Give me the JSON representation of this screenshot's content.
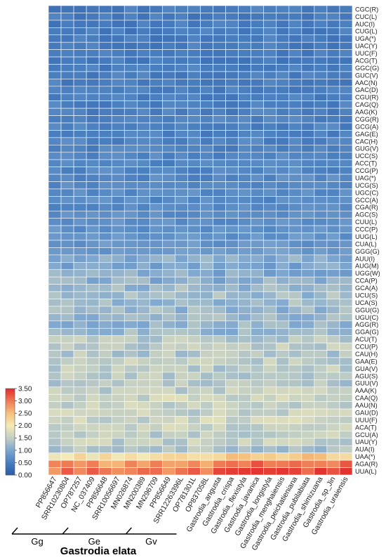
{
  "chart_data": {
    "type": "heatmap",
    "title": "",
    "xlabel": "",
    "ylabel": "",
    "columns": [
      "PP856647",
      "SRR10230804",
      "OP787257",
      "NC_037409",
      "PP856648",
      "SRR10056697",
      "MN026874",
      "MN200389",
      "MN296709",
      "PP856649",
      "SRR12263396L",
      "OP781301L",
      "OP837058L",
      "Gastrodia_angusta",
      "Gastrodia_crispa",
      "Gastrodia_flexistyla",
      "Gastrodia_javanica",
      "Gastrodia_longistyla",
      "Gastrodia_menghaiensis",
      "Gastrodia_peichatieniana",
      "Gastrodia_pubilabiata",
      "Gastrodia_shimizuana",
      "Gastrodia_sp_Jin",
      "Gastrodia_uraiensis"
    ],
    "rows": [
      "CGC(R)",
      "CUC(L)",
      "AUC(I)",
      "CUG(L)",
      "UGA(*)",
      "UAC(Y)",
      "UUC(F)",
      "ACG(T)",
      "GGC(G)",
      "GUC(V)",
      "AAC(N)",
      "GAC(D)",
      "CGU(R)",
      "CAG(Q)",
      "AAG(K)",
      "CGG(R)",
      "GCG(A)",
      "GAG(E)",
      "CAC(H)",
      "GUG(V)",
      "UCC(S)",
      "ACC(T)",
      "CCG(P)",
      "UAG(*)",
      "UCG(S)",
      "UGC(C)",
      "GCC(A)",
      "CGA(R)",
      "AGC(S)",
      "CUU(L)",
      "CCC(P)",
      "UUG(L)",
      "CUA(L)",
      "GGG(G)",
      "AUU(I)",
      "AUG(M)",
      "UGG(W)",
      "CCA(P)",
      "GCA(A)",
      "UCU(S)",
      "UCA(S)",
      "GGU(G)",
      "UGU(C)",
      "AGG(R)",
      "GGA(G)",
      "ACU(T)",
      "CCU(P)",
      "CAU(H)",
      "GAA(E)",
      "GUA(V)",
      "AGU(S)",
      "GUU(V)",
      "AAA(K)",
      "CAA(Q)",
      "AAU(N)",
      "GAU(D)",
      "UUU(F)",
      "ACA(T)",
      "GCU(A)",
      "UAU(Y)",
      "AUA(I)",
      "UAA(*)",
      "AGA(R)",
      "UUA(L)"
    ],
    "row_base": [
      0.45,
      0.45,
      0.45,
      0.45,
      0.45,
      0.45,
      0.45,
      0.45,
      0.48,
      0.48,
      0.48,
      0.48,
      0.5,
      0.5,
      0.5,
      0.52,
      0.52,
      0.52,
      0.55,
      0.55,
      0.58,
      0.58,
      0.6,
      0.62,
      0.62,
      0.65,
      0.65,
      0.65,
      0.68,
      0.7,
      0.72,
      0.75,
      0.78,
      0.85,
      1.05,
      1.0,
      1.05,
      1.1,
      1.2,
      1.25,
      1.25,
      1.2,
      1.2,
      1.15,
      1.2,
      1.4,
      1.45,
      1.4,
      1.5,
      1.45,
      1.45,
      1.4,
      1.5,
      1.6,
      1.55,
      1.55,
      1.6,
      1.55,
      1.5,
      1.5,
      1.35,
      2.1,
      2.8,
      3.0
    ],
    "colorbar": {
      "min": 0.0,
      "max": 3.5,
      "ticks": [
        "0.00",
        "0.50",
        "1.00",
        "1.50",
        "2.00",
        "2.50",
        "3.00",
        "3.50"
      ],
      "tick_values": [
        0,
        0.5,
        1.0,
        1.5,
        2.0,
        2.5,
        3.0,
        3.5
      ],
      "colors": [
        "#2b5aa8",
        "#4a7fbf",
        "#7ea6cf",
        "#c3cfc3",
        "#f4eab6",
        "#f5c07c",
        "#ef7b55",
        "#e22b2b"
      ]
    },
    "groups": [
      {
        "label": "Gg",
        "start": 0,
        "end": 3
      },
      {
        "label": "Ge",
        "start": 4,
        "end": 8
      },
      {
        "label": "Gv",
        "start": 9,
        "end": 12
      }
    ],
    "group_title": "Gastrodia elata"
  }
}
